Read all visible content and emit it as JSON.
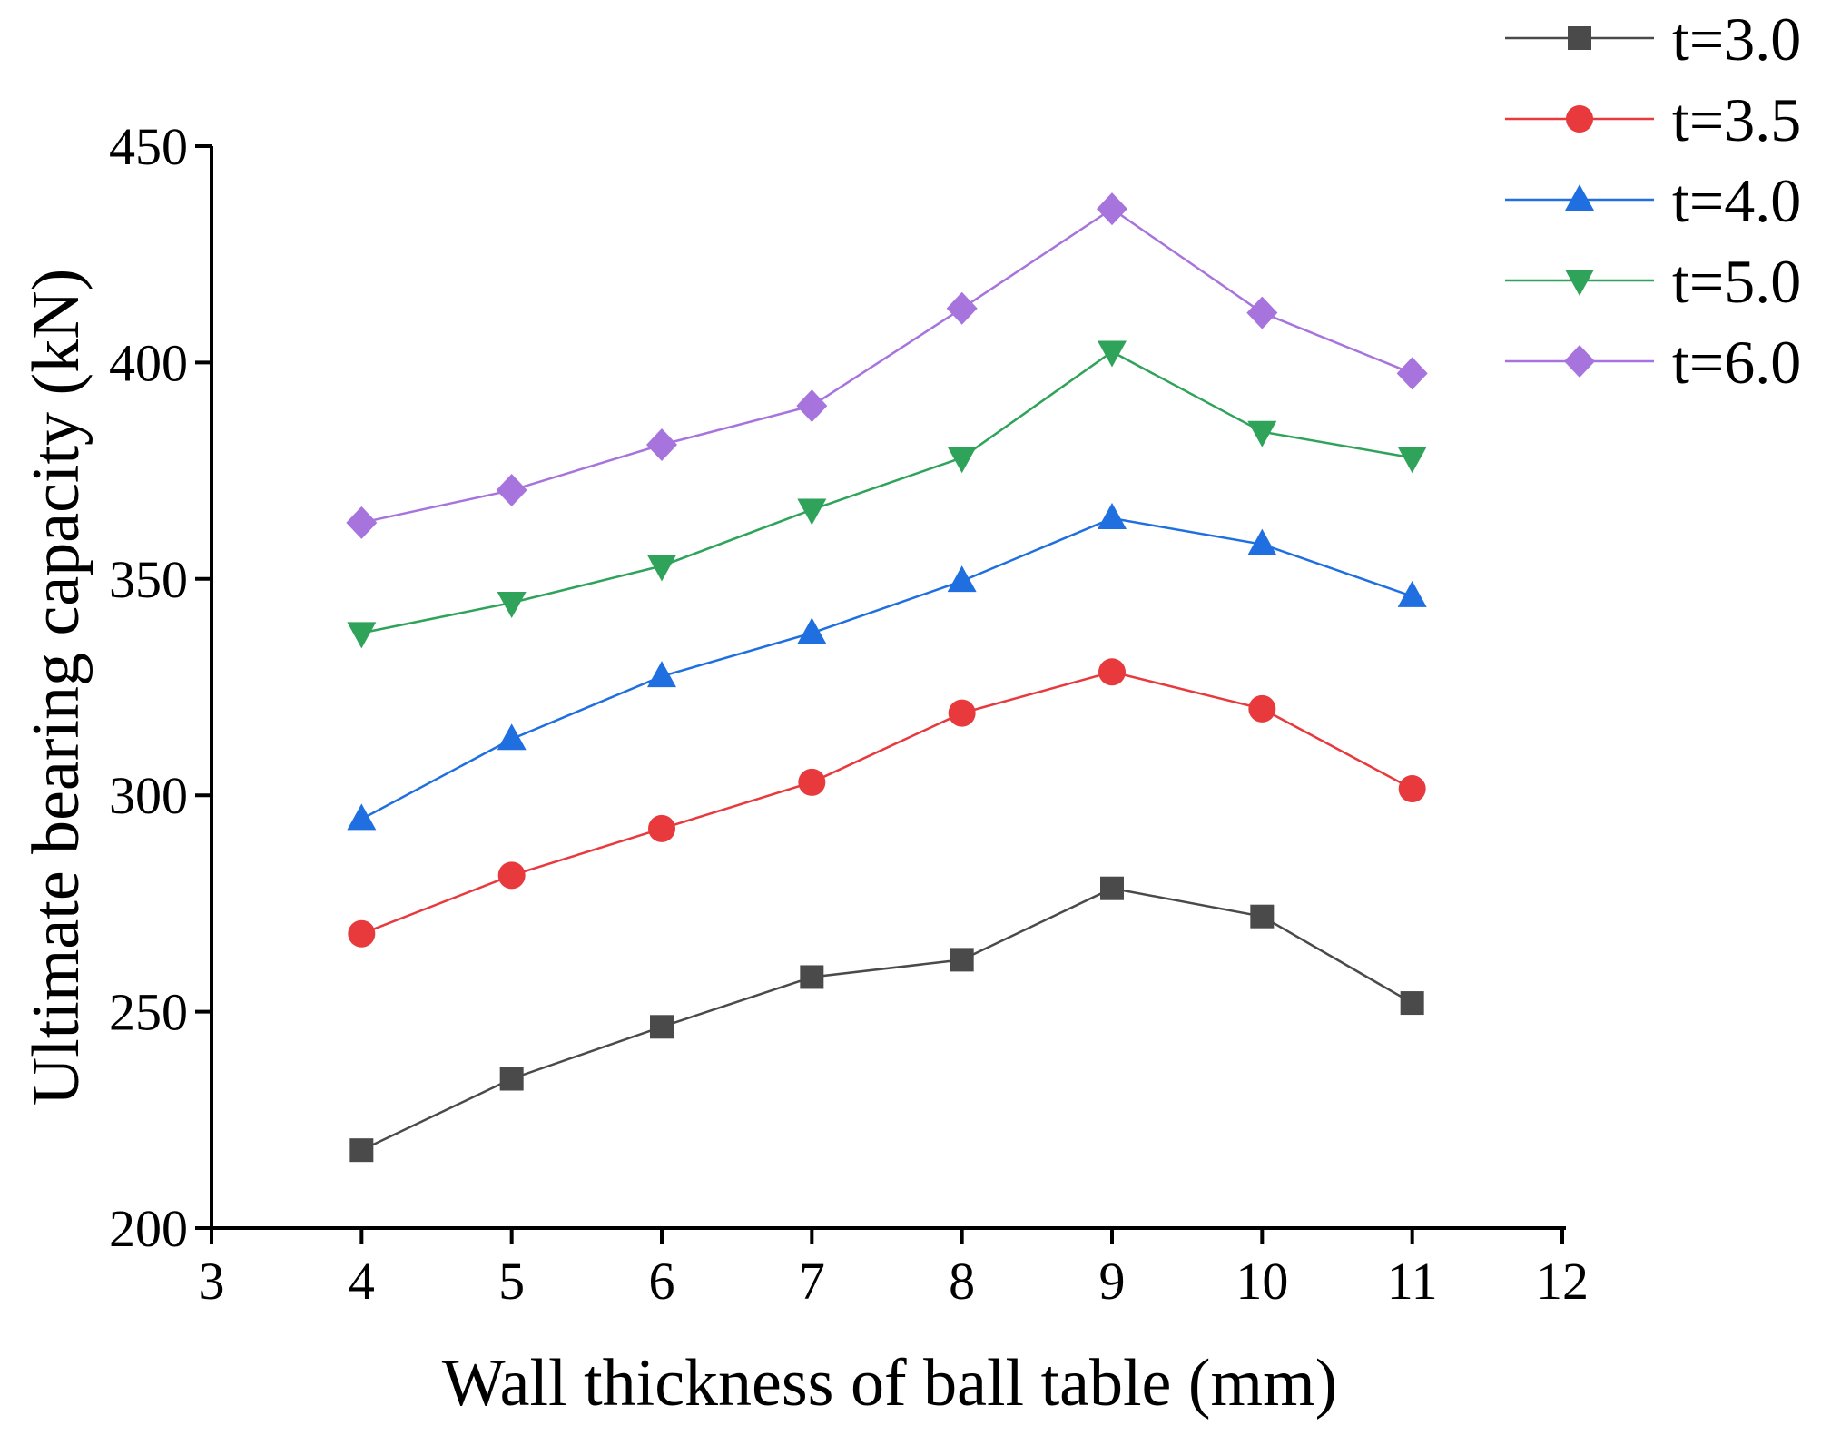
{
  "chart_data": {
    "type": "line",
    "xlabel": "Wall thickness of ball table (mm)",
    "ylabel": "Ultimate bearing capacity (kN)",
    "xlim": [
      3,
      12
    ],
    "ylim": [
      200,
      450
    ],
    "xticks": [
      3,
      4,
      5,
      6,
      7,
      8,
      9,
      10,
      11,
      12
    ],
    "yticks": [
      200,
      250,
      300,
      350,
      400,
      450
    ],
    "x": [
      4,
      5,
      6,
      7,
      8,
      9,
      10,
      11
    ],
    "legend_position": "top-right",
    "series": [
      {
        "name": "t=3.0",
        "color": "#4a4a4a",
        "marker": "square",
        "values": [
          218,
          234.5,
          246.5,
          258,
          262,
          278.5,
          272,
          252
        ]
      },
      {
        "name": "t=3.5",
        "color": "#e8393d",
        "marker": "circle",
        "values": [
          268,
          281.5,
          292.3,
          303,
          319,
          328.5,
          320,
          301.5
        ]
      },
      {
        "name": "t=4.0",
        "color": "#1f6fe0",
        "marker": "triangle-up",
        "values": [
          294.5,
          313,
          327.5,
          337.5,
          349.5,
          364,
          358,
          346
        ]
      },
      {
        "name": "t=5.0",
        "color": "#2fa35a",
        "marker": "triangle-down",
        "values": [
          337.5,
          344.5,
          353,
          366,
          378,
          402.5,
          384,
          378
        ]
      },
      {
        "name": "t=6.0",
        "color": "#a774dd",
        "marker": "diamond",
        "values": [
          363,
          370.5,
          381,
          390,
          412.5,
          435.5,
          411.5,
          397.5
        ]
      }
    ]
  }
}
